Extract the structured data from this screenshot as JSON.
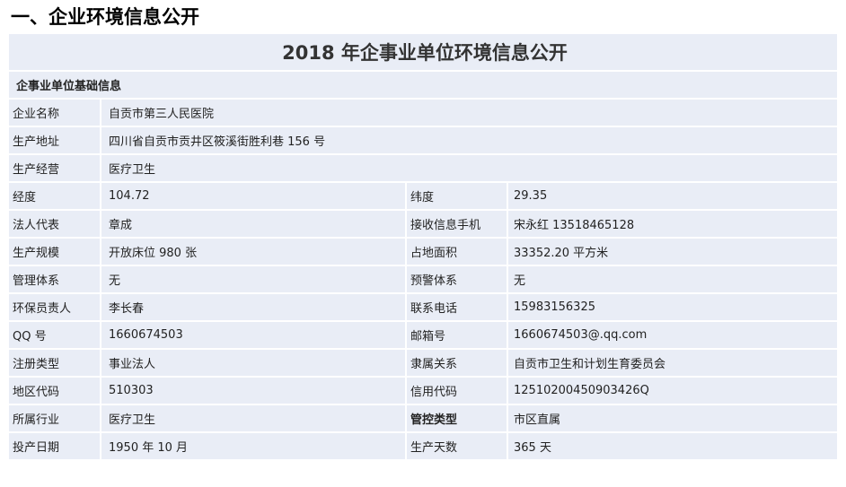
{
  "heading": "一、企业环境信息公开",
  "table_title": "2018 年企事业单位环境信息公开",
  "section": "企事业单位基础信息",
  "single_rows": [
    {
      "label": "企业名称",
      "value": "自贡市第三人民医院"
    },
    {
      "label": "生产地址",
      "value": "四川省自贡市贡井区筱溪街胜利巷 156 号"
    },
    {
      "label": "生产经营",
      "value": "医疗卫生"
    }
  ],
  "pair_rows": [
    {
      "l1": "经度",
      "v1": "104.72",
      "l2": "纬度",
      "v2": "29.35"
    },
    {
      "l1": "法人代表",
      "v1": "章成",
      "l2": "接收信息手机",
      "v2": "宋永红 13518465128"
    },
    {
      "l1": "生产规模",
      "v1": "开放床位 980 张",
      "l2": "占地面积",
      "v2": "33352.20 平方米"
    },
    {
      "l1": "管理体系",
      "v1": "无",
      "l2": "预警体系",
      "v2": "无"
    },
    {
      "l1": "环保员责人",
      "v1": "李长春",
      "l2": "联系电话",
      "v2": "15983156325"
    },
    {
      "l1": "QQ 号",
      "v1": "1660674503",
      "l2": "邮箱号",
      "v2": "1660674503@.qq.com"
    },
    {
      "l1": "注册类型",
      "v1": "事业法人",
      "l2": "隶属关系",
      "v2": "自贡市卫生和计划生育委员会"
    },
    {
      "l1": "地区代码",
      "v1": "510303",
      "l2": "信用代码",
      "v2": "12510200450903426Q"
    },
    {
      "l1": "所属行业",
      "v1": "医疗卫生",
      "l2": "管控类型",
      "v2": "市区直属"
    },
    {
      "l1": "投产日期",
      "v1": "1950 年 10 月",
      "l2": "生产天数",
      "v2": "365 天"
    }
  ]
}
